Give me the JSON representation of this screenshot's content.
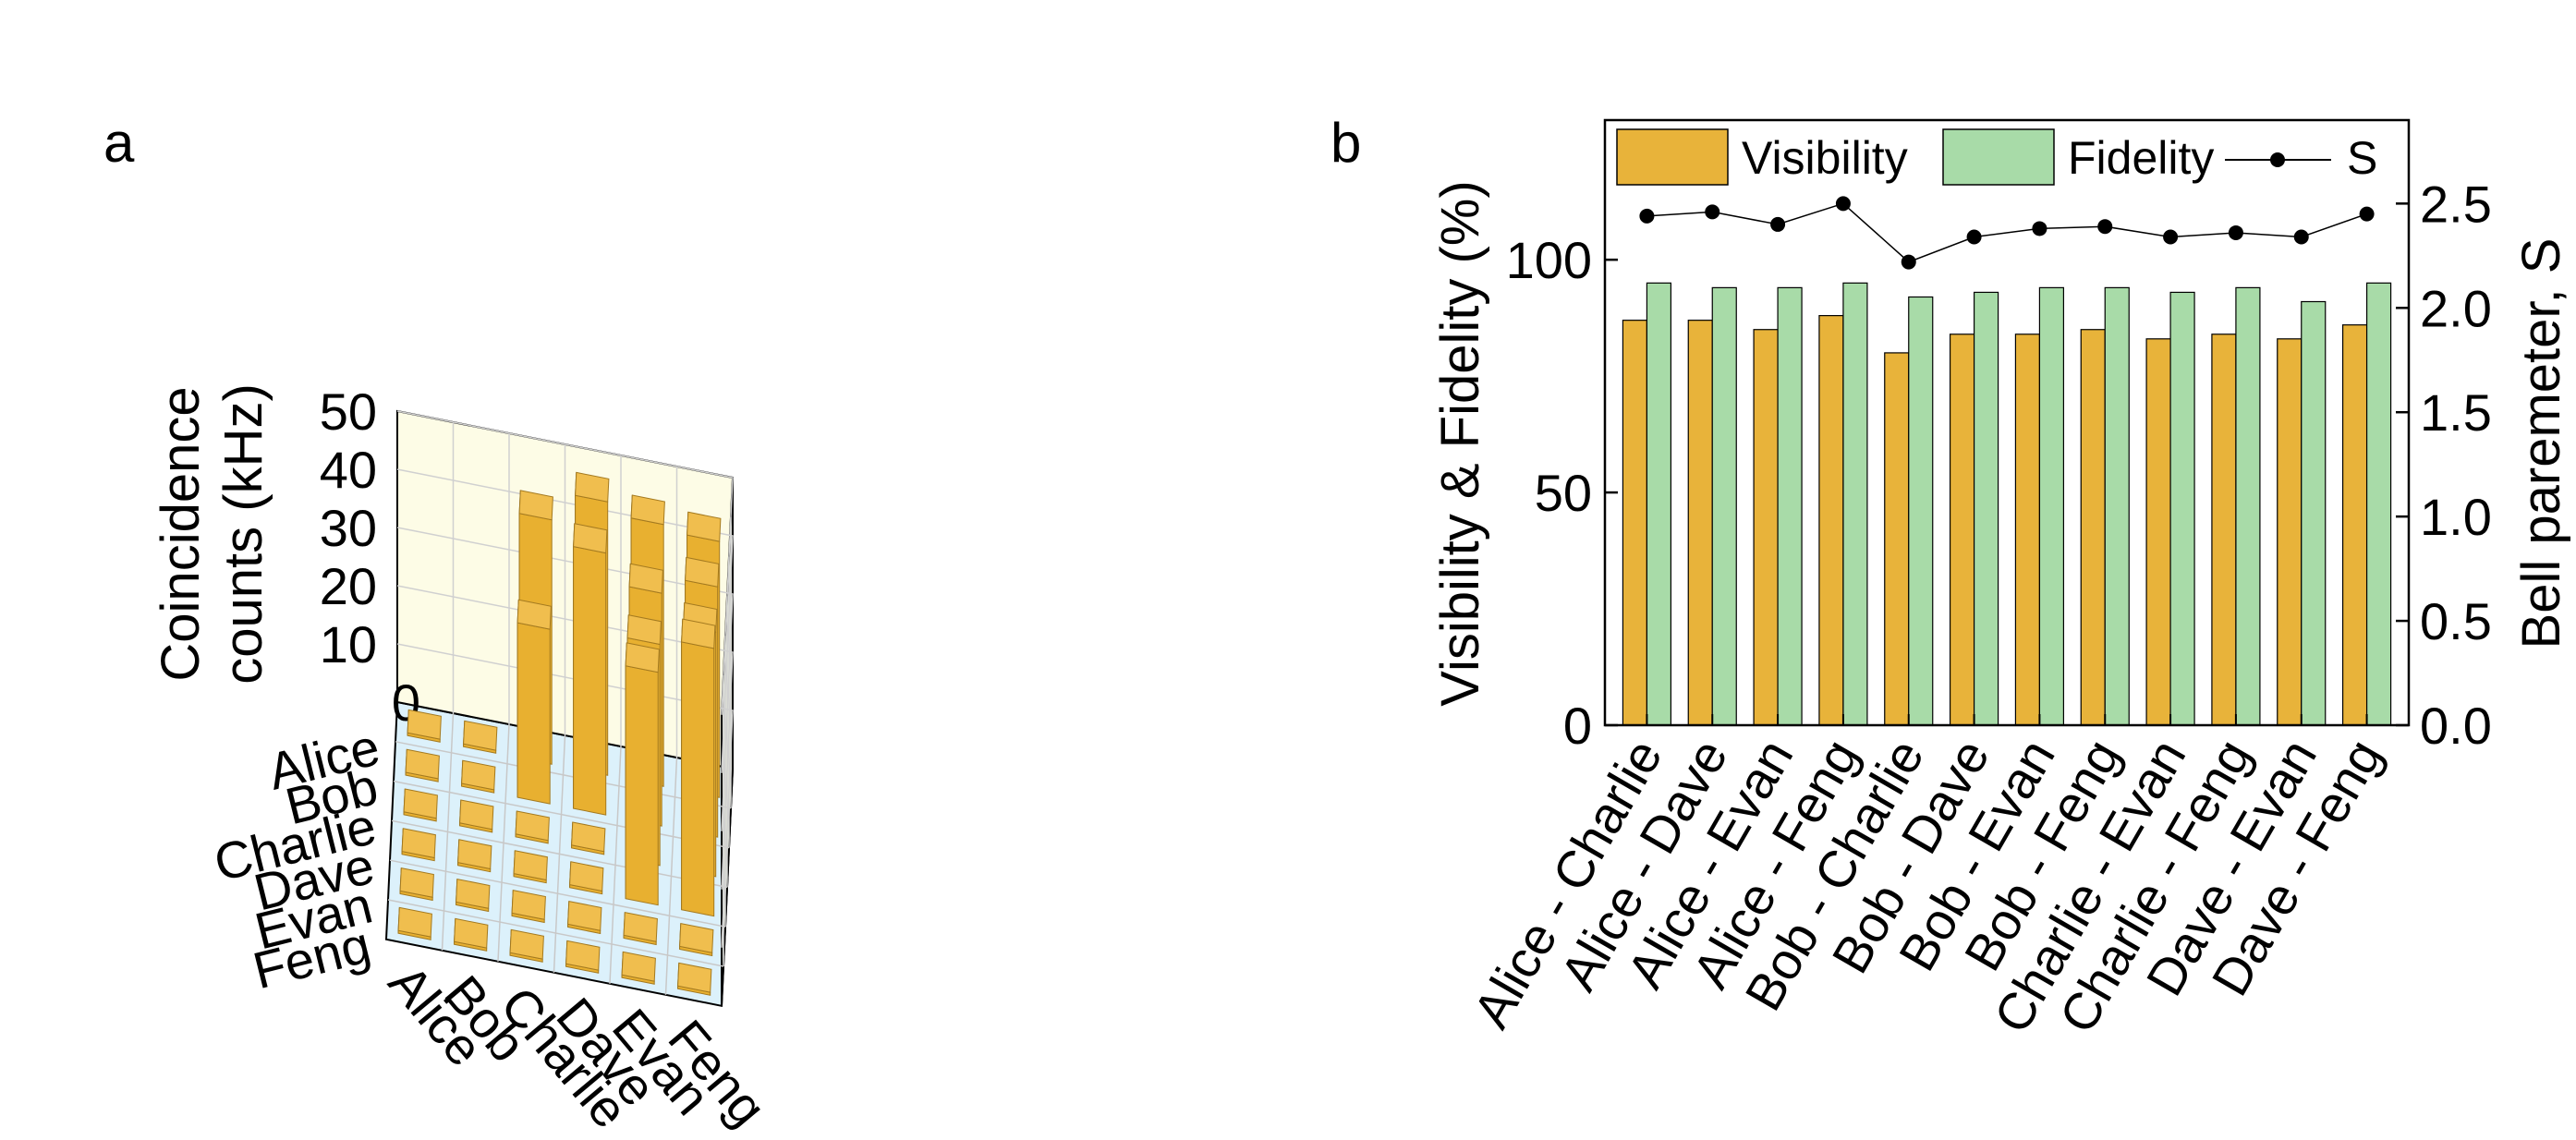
{
  "panel_labels": {
    "a": "a",
    "b": "b"
  },
  "colors": {
    "bar_top": "#f0be4e",
    "bar_front": "#e8b030",
    "bar_side": "#9a7322",
    "visibility": "#e8b33a",
    "fidelity": "#a8dba8",
    "s_marker": "#000000",
    "back_wall": "#fdfce6",
    "side_wall": "#f2fbe3",
    "floor": "#dcf1fb"
  },
  "chart_data": [
    {
      "type": "bar3d",
      "panel": "a",
      "ylabel_line1": "Coincidence",
      "ylabel_line2": "counts (kHz)",
      "zlim": [
        0,
        50
      ],
      "z_ticks": [
        "0",
        "10",
        "20",
        "30",
        "40",
        "50"
      ],
      "row_categories": [
        "Alice",
        "Bob",
        "Charlie",
        "Dave",
        "Evan",
        "Feng"
      ],
      "col_categories": [
        "Alice",
        "Bob",
        "Charlie",
        "Dave",
        "Evan",
        "Feng"
      ],
      "matrix": [
        [
          0.5,
          0.5,
          42,
          47,
          45,
          44
        ],
        [
          0.5,
          0.5,
          30,
          45,
          40,
          43
        ],
        [
          0.5,
          0.5,
          0.5,
          0.5,
          38,
          42
        ],
        [
          0.5,
          0.5,
          0.5,
          0.5,
          40,
          46
        ],
        [
          0.5,
          0.5,
          0.5,
          0.5,
          0.5,
          0.5
        ],
        [
          0.5,
          0.5,
          0.5,
          0.5,
          0.5,
          0.5
        ]
      ]
    },
    {
      "type": "bar+line",
      "panel": "b",
      "categories": [
        "Alice - Charlie",
        "Alice - Dave",
        "Alice - Evan",
        "Alice - Feng",
        "Bob - Charlie",
        "Bob - Dave",
        "Bob - Evan",
        "Bob - Feng",
        "Charlie - Evan",
        "Charlie - Feng",
        "Dave - Evan",
        "Dave - Feng"
      ],
      "series": [
        {
          "name": "Visibility",
          "axis": "left",
          "values": [
            87,
            87,
            85,
            88,
            80,
            84,
            84,
            85,
            83,
            84,
            83,
            86
          ]
        },
        {
          "name": "Fidelity",
          "axis": "left",
          "values": [
            95,
            94,
            94,
            95,
            92,
            93,
            94,
            94,
            93,
            94,
            91,
            95
          ]
        },
        {
          "name": "S",
          "axis": "right",
          "type": "line",
          "values": [
            2.44,
            2.46,
            2.4,
            2.5,
            2.22,
            2.34,
            2.38,
            2.39,
            2.34,
            2.36,
            2.34,
            2.45
          ]
        }
      ],
      "ylabel": "Visibility & Fidelity (%)",
      "ylim": [
        0,
        130
      ],
      "y_ticks": [
        "0",
        "50",
        "100"
      ],
      "y2label": "Bell paremeter, S",
      "y2lim": [
        0,
        2.9
      ],
      "y2_ticks": [
        "0.0",
        "0.5",
        "1.0",
        "1.5",
        "2.0",
        "2.5"
      ],
      "legend": [
        "Visibility",
        "Fidelity",
        "S"
      ],
      "legend_position": "top"
    }
  ]
}
